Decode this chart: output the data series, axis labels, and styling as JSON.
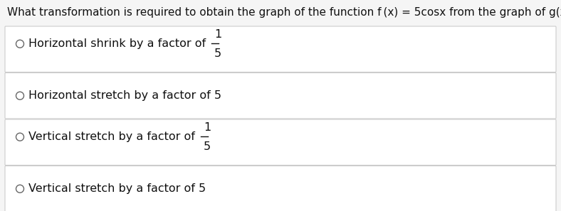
{
  "question": "What transformation is required to obtain the graph of the function f (x) = 5cosx from the graph of g(x) = cosx?",
  "options": [
    {
      "text_before": "Horizontal shrink by a factor of ",
      "fraction": true,
      "numerator": "1",
      "denominator": "5"
    },
    {
      "text_before": "Horizontal stretch by a factor of 5",
      "fraction": false
    },
    {
      "text_before": "Vertical stretch by a factor of ",
      "fraction": true,
      "numerator": "1",
      "denominator": "5"
    },
    {
      "text_before": "Vertical stretch by a factor of 5",
      "fraction": false
    }
  ],
  "bg_color": "#f5f5f5",
  "box_bg": "#ffffff",
  "box_border": "#cccccc",
  "question_color": "#111111",
  "option_color": "#111111",
  "circle_color": "#666666",
  "question_fontsize": 11.0,
  "option_fontsize": 11.5,
  "fig_width": 7.88,
  "fig_height": 2.97,
  "dpi": 100
}
